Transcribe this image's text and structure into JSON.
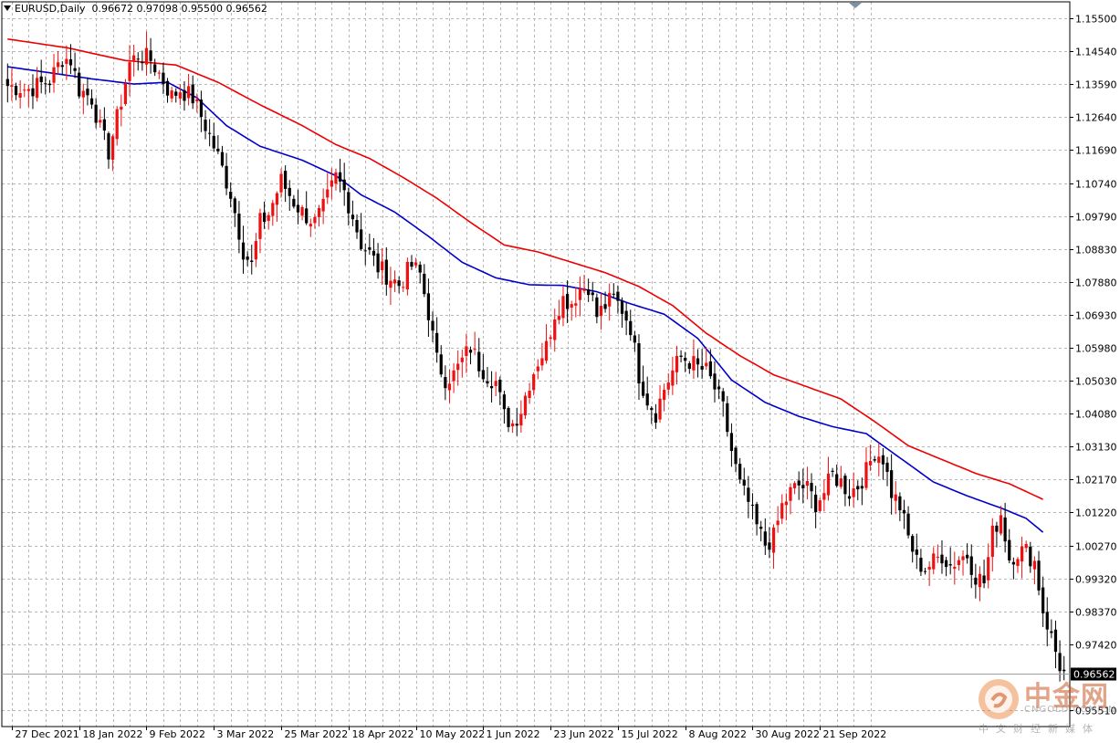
{
  "header": {
    "symbol": "EURUSD,Daily",
    "ohlc": "0.96672 0.97098 0.95500 0.96562"
  },
  "watermark": {
    "brand_cn": "中金网",
    "brand_en": "CNGOLD.COM.CN",
    "tagline": "中文财经新媒体"
  },
  "chart_data": {
    "type": "candlestick",
    "title": "",
    "symbol": "EURUSD",
    "timeframe": "Daily",
    "ylim": [
      0.95035,
      1.15975
    ],
    "y_ticks": [
      "1.15500",
      "1.14540",
      "1.13590",
      "1.12640",
      "1.11690",
      "1.10740",
      "1.09790",
      "1.08830",
      "1.07880",
      "1.06930",
      "1.05980",
      "1.05030",
      "1.04080",
      "1.03130",
      "1.02170",
      "1.01220",
      "1.00270",
      "0.99320",
      "0.98370",
      "0.97420",
      "0.95510"
    ],
    "x_ticks": [
      "27 Dec 2021",
      "18 Jan 2022",
      "9 Feb 2022",
      "3 Mar 2022",
      "25 Mar 2022",
      "18 Apr 2022",
      "10 May 2022",
      "1 Jun 2022",
      "23 Jun 2022",
      "15 Jul 2022",
      "8 Aug 2022",
      "30 Aug 2022",
      "21 Sep 2022"
    ],
    "last_price": "0.96562",
    "grid": true,
    "close_anchors": [
      [
        0,
        1.1355
      ],
      [
        5,
        1.1345
      ],
      [
        10,
        1.137
      ],
      [
        13,
        1.1435
      ],
      [
        15,
        1.143
      ],
      [
        17,
        1.1345
      ],
      [
        20,
        1.132
      ],
      [
        22,
        1.123
      ],
      [
        24,
        1.1165
      ],
      [
        26,
        1.126
      ],
      [
        29,
        1.142
      ],
      [
        31,
        1.1445
      ],
      [
        34,
        1.143
      ],
      [
        37,
        1.137
      ],
      [
        39,
        1.1325
      ],
      [
        41,
        1.1345
      ],
      [
        44,
        1.132
      ],
      [
        47,
        1.124
      ],
      [
        50,
        1.115
      ],
      [
        53,
        1.1045
      ],
      [
        56,
        1.088
      ],
      [
        58,
        1.0835
      ],
      [
        60,
        1.096
      ],
      [
        62,
        1.0985
      ],
      [
        65,
        1.108
      ],
      [
        68,
        1.102
      ],
      [
        70,
        1.099
      ],
      [
        73,
        1.096
      ],
      [
        75,
        1.1
      ],
      [
        78,
        1.109
      ],
      [
        80,
        1.105
      ],
      [
        82,
        1.098
      ],
      [
        84,
        1.09
      ],
      [
        86,
        1.087
      ],
      [
        88,
        1.083
      ],
      [
        90,
        1.081
      ],
      [
        93,
        1.078
      ],
      [
        96,
        1.0835
      ],
      [
        98,
        1.081
      ],
      [
        100,
        1.07
      ],
      [
        102,
        1.056
      ],
      [
        104,
        1.051
      ],
      [
        106,
        1.052
      ],
      [
        108,
        1.056
      ],
      [
        110,
        1.06
      ],
      [
        112,
        1.055
      ],
      [
        114,
        1.052
      ],
      [
        116,
        1.05
      ],
      [
        118,
        1.04
      ],
      [
        120,
        1.038
      ],
      [
        122,
        1.042
      ],
      [
        124,
        1.05
      ],
      [
        126,
        1.056
      ],
      [
        128,
        1.06
      ],
      [
        130,
        1.07
      ],
      [
        132,
        1.074
      ],
      [
        134,
        1.073
      ],
      [
        136,
        1.077
      ],
      [
        138,
        1.078
      ],
      [
        140,
        1.069
      ],
      [
        142,
        1.072
      ],
      [
        144,
        1.074
      ],
      [
        146,
        1.071
      ],
      [
        148,
        1.066
      ],
      [
        150,
        1.052
      ],
      [
        152,
        1.045
      ],
      [
        154,
        1.041
      ],
      [
        156,
        1.048
      ],
      [
        158,
        1.053
      ],
      [
        160,
        1.057
      ],
      [
        162,
        1.056
      ],
      [
        164,
        1.054
      ],
      [
        166,
        1.053
      ],
      [
        168,
        1.048
      ],
      [
        170,
        1.042
      ],
      [
        172,
        1.03
      ],
      [
        174,
        1.02
      ],
      [
        176,
        1.015
      ],
      [
        178,
        1.008
      ],
      [
        180,
        1.003
      ],
      [
        182,
        1.005
      ],
      [
        184,
        1.014
      ],
      [
        186,
        1.018
      ],
      [
        188,
        1.02
      ],
      [
        190,
        1.019
      ],
      [
        192,
        1.015
      ],
      [
        194,
        1.018
      ],
      [
        196,
        1.023
      ],
      [
        198,
        1.021
      ],
      [
        200,
        1.018
      ],
      [
        202,
        1.02
      ],
      [
        204,
        1.024
      ],
      [
        206,
        1.03
      ],
      [
        208,
        1.028
      ],
      [
        210,
        1.018
      ],
      [
        212,
        1.014
      ],
      [
        214,
        1.005
      ],
      [
        216,
        0.998
      ],
      [
        218,
        0.996
      ],
      [
        220,
        0.998
      ],
      [
        222,
        1.0
      ],
      [
        224,
        0.997
      ],
      [
        226,
        0.999
      ],
      [
        228,
        1.0
      ],
      [
        230,
        0.994
      ],
      [
        232,
        0.992
      ],
      [
        234,
        1.006
      ],
      [
        236,
        1.012
      ],
      [
        238,
        0.999
      ],
      [
        240,
        1.001
      ],
      [
        242,
        1.001
      ],
      [
        244,
        0.998
      ],
      [
        246,
        0.984
      ],
      [
        248,
        0.976
      ],
      [
        250,
        0.968
      ],
      [
        251,
        0.9656
      ]
    ],
    "sma_fast": [
      [
        0,
        1.141
      ],
      [
        20,
        1.1375
      ],
      [
        30,
        1.136
      ],
      [
        38,
        1.1365
      ],
      [
        45,
        1.132
      ],
      [
        52,
        1.124
      ],
      [
        60,
        1.118
      ],
      [
        70,
        1.114
      ],
      [
        78,
        1.1095
      ],
      [
        84,
        1.104
      ],
      [
        92,
        1.099
      ],
      [
        100,
        1.092
      ],
      [
        108,
        1.0845
      ],
      [
        116,
        1.08
      ],
      [
        124,
        1.078
      ],
      [
        132,
        1.0778
      ],
      [
        140,
        1.076
      ],
      [
        148,
        1.0725
      ],
      [
        156,
        1.0695
      ],
      [
        164,
        1.0625
      ],
      [
        172,
        1.0505
      ],
      [
        180,
        1.044
      ],
      [
        188,
        1.04
      ],
      [
        196,
        1.037
      ],
      [
        204,
        1.035
      ],
      [
        212,
        1.028
      ],
      [
        220,
        1.021
      ],
      [
        228,
        1.017
      ],
      [
        236,
        1.0135
      ],
      [
        242,
        1.0105
      ],
      [
        246,
        1.0065
      ]
    ],
    "sma_slow": [
      [
        0,
        1.149
      ],
      [
        14,
        1.1465
      ],
      [
        28,
        1.1428
      ],
      [
        40,
        1.1415
      ],
      [
        50,
        1.1365
      ],
      [
        60,
        1.13
      ],
      [
        70,
        1.124
      ],
      [
        78,
        1.1185
      ],
      [
        86,
        1.1145
      ],
      [
        94,
        1.109
      ],
      [
        102,
        1.103
      ],
      [
        110,
        1.096
      ],
      [
        118,
        1.0895
      ],
      [
        126,
        1.0875
      ],
      [
        134,
        1.0845
      ],
      [
        142,
        1.0815
      ],
      [
        150,
        1.0775
      ],
      [
        158,
        1.072
      ],
      [
        166,
        1.064
      ],
      [
        174,
        1.0575
      ],
      [
        182,
        1.052
      ],
      [
        190,
        1.0485
      ],
      [
        198,
        1.045
      ],
      [
        206,
        1.0385
      ],
      [
        214,
        1.0315
      ],
      [
        222,
        1.0275
      ],
      [
        230,
        1.0235
      ],
      [
        238,
        1.0205
      ],
      [
        246,
        1.016
      ]
    ],
    "series_colors": {
      "sma_fast": "#0000cc",
      "sma_slow": "#ee0000",
      "bull": "#ee1111",
      "bear": "#000000"
    }
  }
}
